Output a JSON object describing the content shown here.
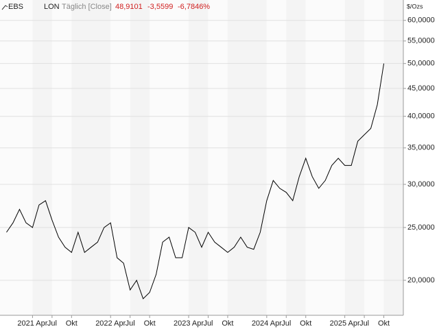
{
  "chart_data": {
    "type": "line",
    "symbol": "EBS",
    "exchange": "LON",
    "interval": "Täglich [Close]",
    "last": "48,9101",
    "change": "-3,5599",
    "change_pct": "-6,7846%",
    "y_unit": "$/Ozs",
    "log_scale": true,
    "grid": true,
    "color": "#000000",
    "x": [
      "2020-12",
      "2021-01",
      "2021-02",
      "2021-03",
      "2021-04",
      "2021-05",
      "2021-06",
      "2021-07",
      "2021-08",
      "2021-09",
      "2021-10",
      "2021-11",
      "2021-12",
      "2022-01",
      "2022-02",
      "2022-03",
      "2022-04",
      "2022-05",
      "2022-06",
      "2022-07",
      "2022-08",
      "2022-09",
      "2022-10",
      "2022-11",
      "2022-12",
      "2023-01",
      "2023-02",
      "2023-03",
      "2023-04",
      "2023-05",
      "2023-06",
      "2023-07",
      "2023-08",
      "2023-09",
      "2023-10",
      "2023-11",
      "2023-12",
      "2024-01",
      "2024-02",
      "2024-03",
      "2024-04",
      "2024-05",
      "2024-06",
      "2024-07",
      "2024-08",
      "2024-09",
      "2024-10",
      "2024-11",
      "2024-12",
      "2025-01",
      "2025-02",
      "2025-03",
      "2025-04",
      "2025-05",
      "2025-06",
      "2025-07",
      "2025-08",
      "2025-09",
      "2025-10"
    ],
    "values": [
      24.5,
      25.5,
      27,
      25.5,
      25,
      27.5,
      28,
      25.8,
      24,
      23,
      22.5,
      24.5,
      22.5,
      23,
      23.5,
      25,
      25.5,
      22,
      21.5,
      19.2,
      20,
      18.5,
      19,
      20.5,
      23.5,
      24,
      22,
      22,
      25,
      24.5,
      23,
      24.5,
      23.5,
      23,
      22.5,
      23,
      24,
      23,
      22.8,
      24.5,
      28,
      30.5,
      29.5,
      29,
      28,
      31,
      33.5,
      31,
      29.5,
      30.5,
      32.5,
      33.5,
      32.5,
      32.5,
      36,
      37,
      38,
      42,
      50
    ],
    "xlim": [
      "2020-11",
      "2026-01"
    ],
    "xticks": [
      {
        "value": "2021-04",
        "label": "2021 Apr"
      },
      {
        "value": "2021-07",
        "label": "Jul"
      },
      {
        "value": "2021-10",
        "label": "Okt"
      },
      {
        "value": "2022-04",
        "label": "2022 Apr"
      },
      {
        "value": "2022-07",
        "label": "Jul"
      },
      {
        "value": "2022-10",
        "label": "Okt"
      },
      {
        "value": "2023-04",
        "label": "2023 Apr"
      },
      {
        "value": "2023-07",
        "label": "Jul"
      },
      {
        "value": "2023-10",
        "label": "Okt"
      },
      {
        "value": "2024-04",
        "label": "2024 Apr"
      },
      {
        "value": "2024-07",
        "label": "Jul"
      },
      {
        "value": "2024-10",
        "label": "Okt"
      },
      {
        "value": "2025-04",
        "label": "2025 Apr"
      },
      {
        "value": "2025-07",
        "label": "Jul"
      },
      {
        "value": "2025-10",
        "label": "Okt"
      }
    ],
    "ylim": [
      17.25,
      65.4
    ],
    "yticks": [
      {
        "value": 20,
        "label": "20,0000"
      },
      {
        "value": 25,
        "label": "25,0000"
      },
      {
        "value": 30,
        "label": "30,0000"
      },
      {
        "value": 35,
        "label": "35,0000"
      },
      {
        "value": 40,
        "label": "40,0000"
      },
      {
        "value": 45,
        "label": "45,0000"
      },
      {
        "value": 50,
        "label": "50,0000"
      },
      {
        "value": 55,
        "label": "55,0000"
      },
      {
        "value": 60,
        "label": "60,0000"
      }
    ]
  }
}
